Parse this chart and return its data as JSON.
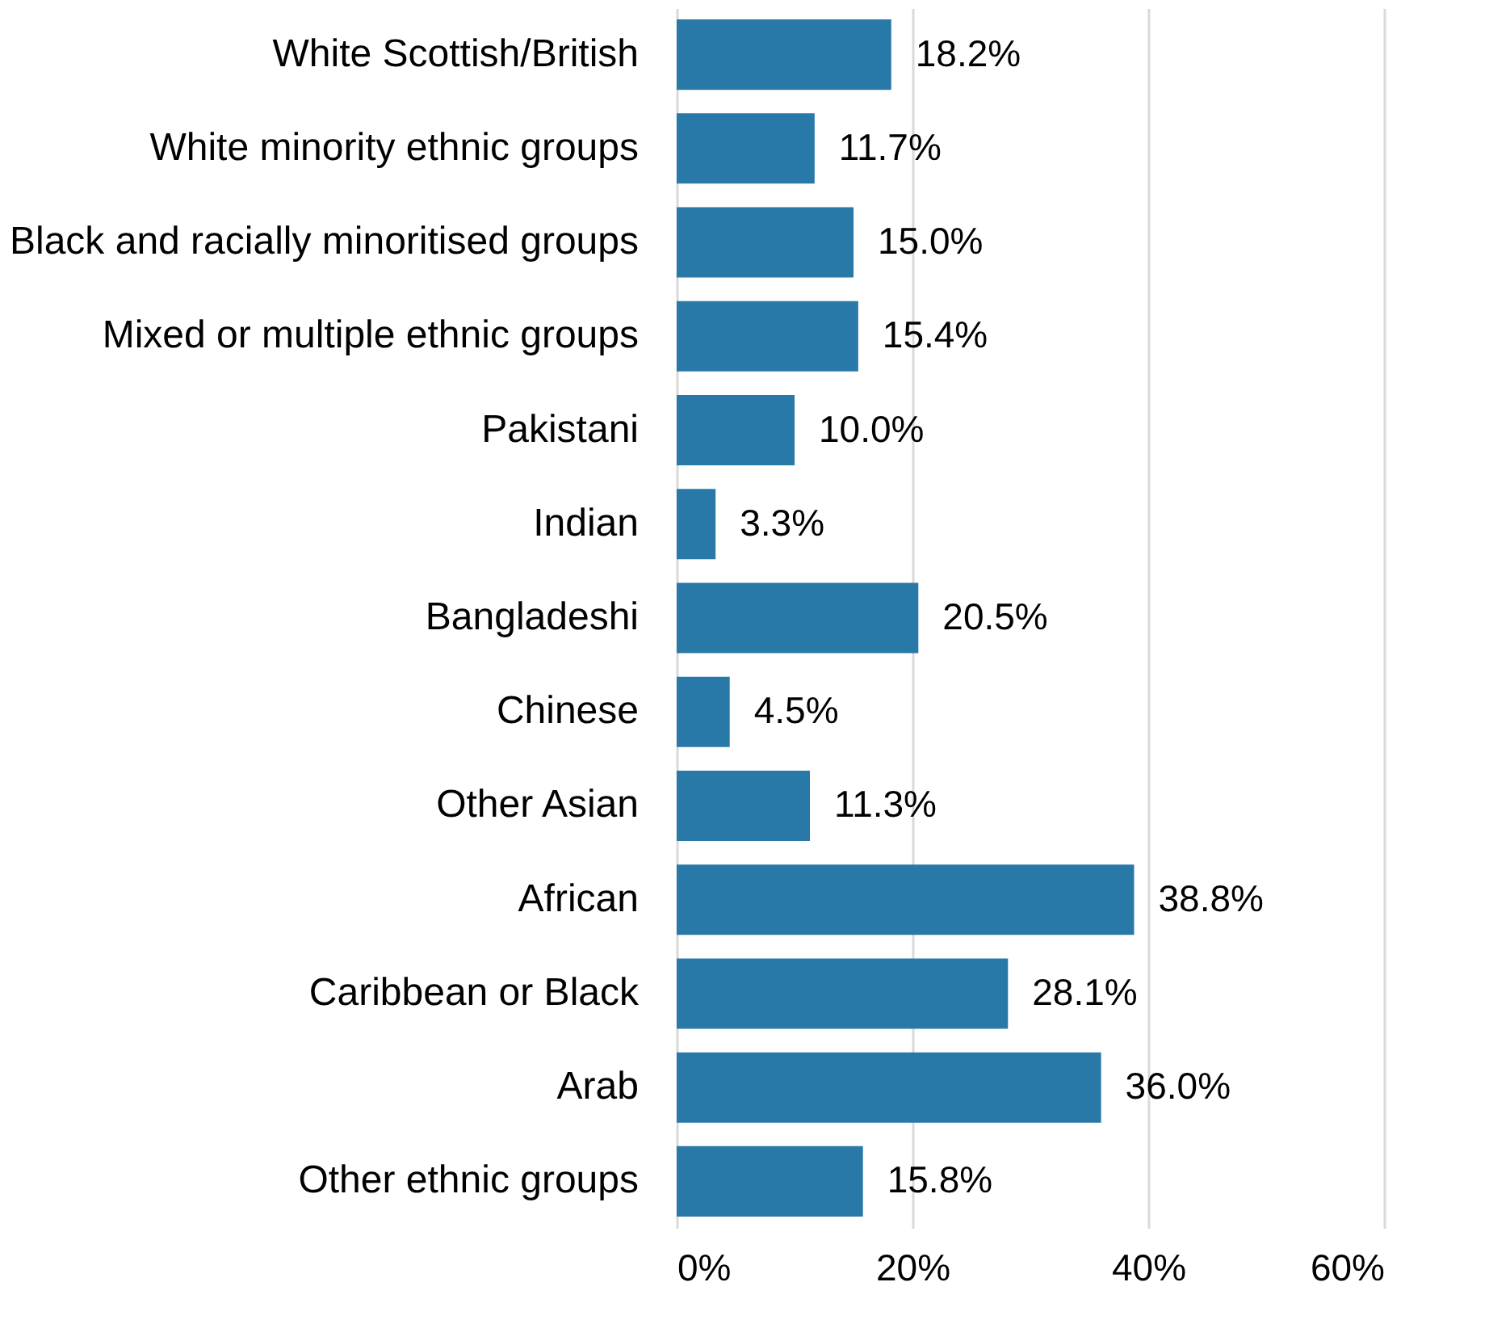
{
  "chart_data": {
    "type": "bar",
    "orientation": "horizontal",
    "categories": [
      "White Scottish/British",
      "White minority ethnic groups",
      "Black and racially minoritised groups",
      "Mixed or multiple ethnic groups",
      "Pakistani",
      "Indian",
      "Bangladeshi",
      "Chinese",
      "Other Asian",
      "African",
      "Caribbean or Black",
      "Arab",
      "Other ethnic groups"
    ],
    "values": [
      18.2,
      11.7,
      15.0,
      15.4,
      10.0,
      3.3,
      20.5,
      4.5,
      11.3,
      38.8,
      28.1,
      36.0,
      15.8
    ],
    "value_labels": [
      "18.2%",
      "11.7%",
      "15.0%",
      "15.4%",
      "10.0%",
      "3.3%",
      "20.5%",
      "4.5%",
      "11.3%",
      "38.8%",
      "28.1%",
      "36.0%",
      "15.8%"
    ],
    "color": "#2878a8",
    "xlim": [
      0,
      60
    ],
    "xticks": [
      {
        "value": 0,
        "label": "0%"
      },
      {
        "value": 20,
        "label": "20%"
      },
      {
        "value": 40,
        "label": "40%"
      },
      {
        "value": 60,
        "label": "60%"
      }
    ],
    "grid": "x"
  }
}
